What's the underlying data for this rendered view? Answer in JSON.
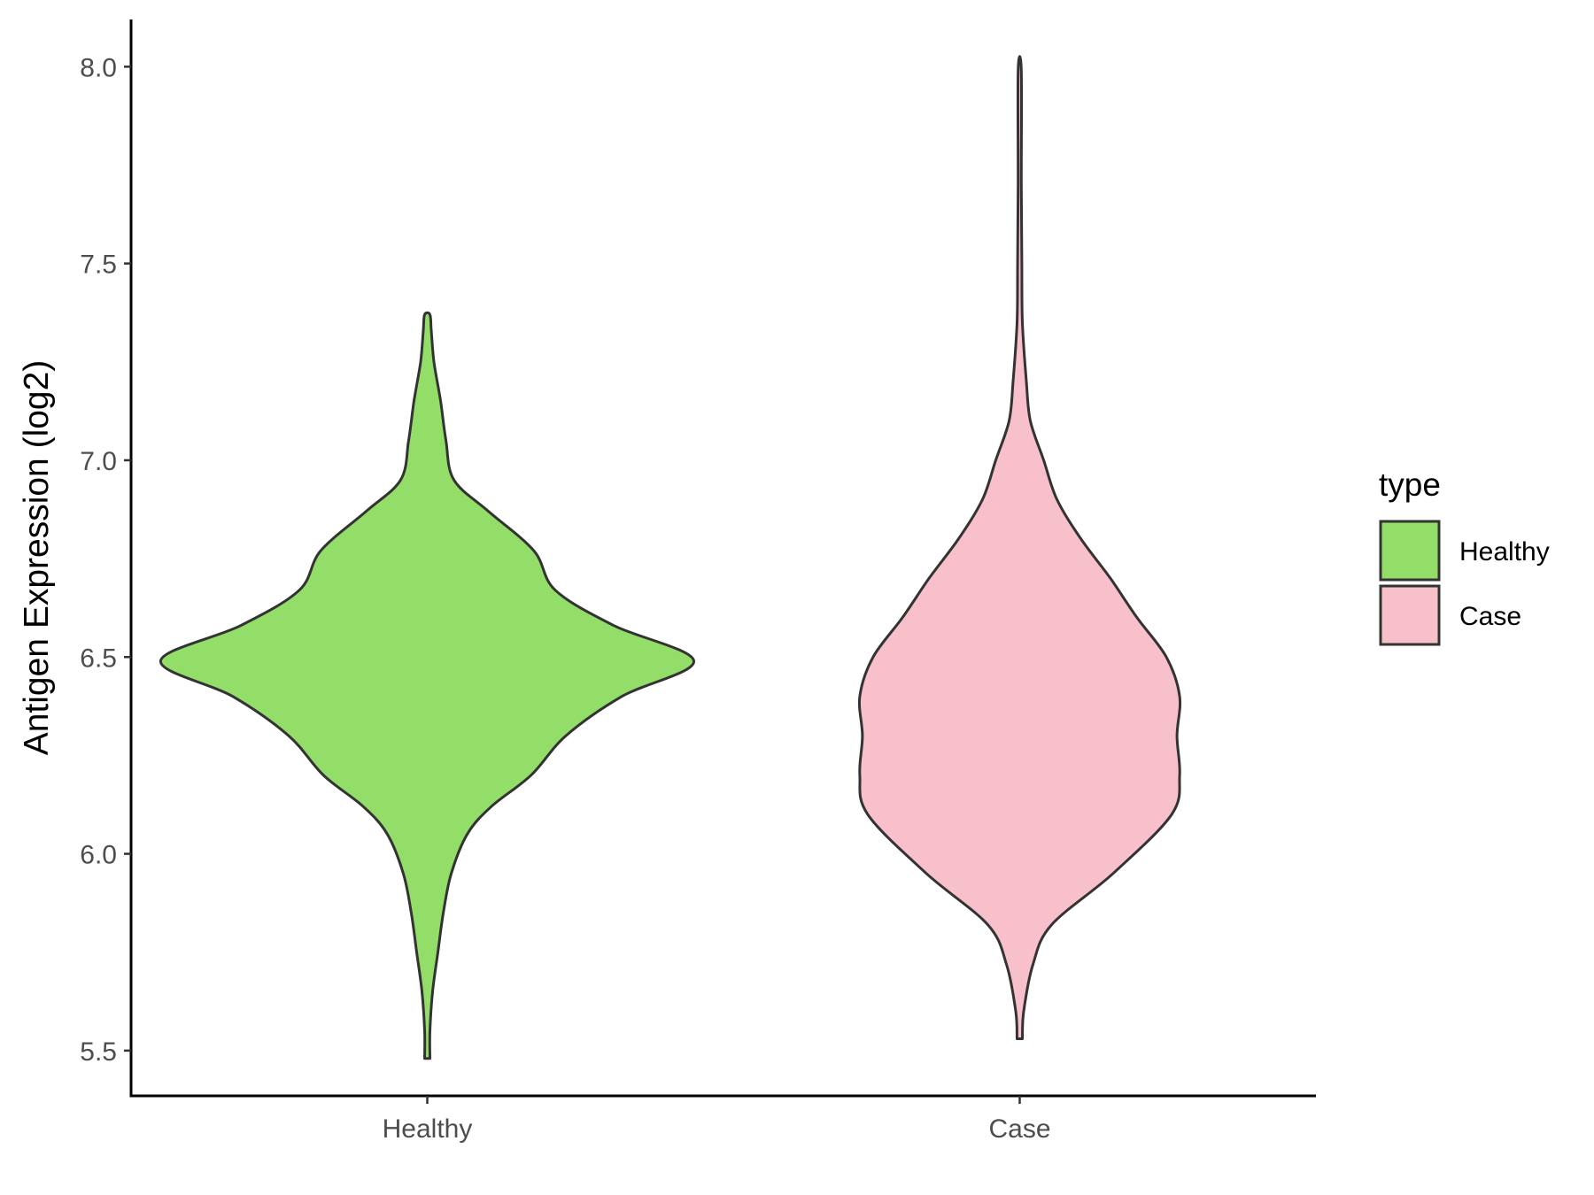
{
  "chart_data": {
    "type": "violin",
    "title": "",
    "xlabel": "",
    "ylabel": "Antigen Expression (log2)",
    "ylim": [
      5.385,
      8.12
    ],
    "y_ticks": [
      "5.5",
      "6.0",
      "6.5",
      "7.0",
      "7.5",
      "8.0"
    ],
    "categories": [
      "Healthy",
      "Case"
    ],
    "grid": false,
    "legend": {
      "title": "type",
      "position": "right",
      "entries": [
        {
          "label": "Healthy",
          "color": "#93dd69"
        },
        {
          "label": "Case",
          "color": "#f7c0cb"
        }
      ]
    },
    "series": [
      {
        "name": "Healthy",
        "color": "#93dd69",
        "min": 5.48,
        "max": 7.37,
        "profile": [
          [
            5.48,
            0.01
          ],
          [
            5.55,
            0.01
          ],
          [
            5.65,
            0.02
          ],
          [
            5.75,
            0.04
          ],
          [
            5.85,
            0.06
          ],
          [
            5.95,
            0.09
          ],
          [
            6.05,
            0.15
          ],
          [
            6.12,
            0.24
          ],
          [
            6.2,
            0.39
          ],
          [
            6.3,
            0.52
          ],
          [
            6.4,
            0.73
          ],
          [
            6.49,
            1.0
          ],
          [
            6.58,
            0.7
          ],
          [
            6.67,
            0.48
          ],
          [
            6.77,
            0.4
          ],
          [
            6.87,
            0.23
          ],
          [
            6.95,
            0.1
          ],
          [
            7.05,
            0.07
          ],
          [
            7.15,
            0.05
          ],
          [
            7.25,
            0.025
          ],
          [
            7.33,
            0.015
          ],
          [
            7.37,
            0.01
          ]
        ]
      },
      {
        "name": "Case",
        "color": "#f7c0cb",
        "min": 5.53,
        "max": 7.99,
        "profile": [
          [
            5.53,
            0.01
          ],
          [
            5.6,
            0.015
          ],
          [
            5.72,
            0.05
          ],
          [
            5.82,
            0.12
          ],
          [
            5.95,
            0.35
          ],
          [
            6.1,
            0.57
          ],
          [
            6.2,
            0.6
          ],
          [
            6.3,
            0.59
          ],
          [
            6.4,
            0.6
          ],
          [
            6.5,
            0.55
          ],
          [
            6.6,
            0.44
          ],
          [
            6.7,
            0.34
          ],
          [
            6.8,
            0.23
          ],
          [
            6.9,
            0.14
          ],
          [
            7.0,
            0.09
          ],
          [
            7.1,
            0.04
          ],
          [
            7.2,
            0.025
          ],
          [
            7.35,
            0.01
          ],
          [
            7.5,
            0.008
          ],
          [
            7.7,
            0.006
          ],
          [
            7.99,
            0.006
          ]
        ]
      }
    ]
  }
}
